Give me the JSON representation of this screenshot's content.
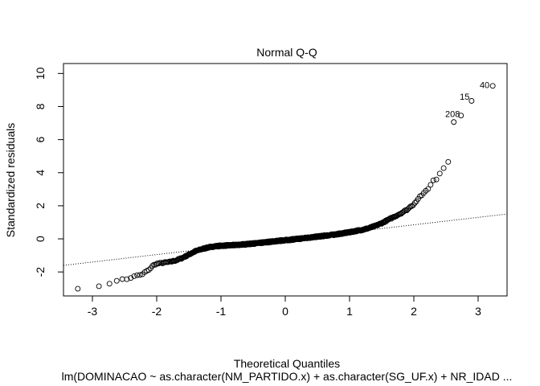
{
  "chart_data": {
    "type": "scatter",
    "title": "Normal Q-Q",
    "xlabel": "Theoretical Quantiles",
    "ylabel": "Standardized residuals",
    "subtitle": "lm(DOMINACAO ~ as.character(NM_PARTIDO.x) + as.character(SG_UF.x) + NR_IDAD ...",
    "xlim": [
      -3.45,
      3.45
    ],
    "ylim": [
      -3.45,
      10.6
    ],
    "x_ticks": [
      -3,
      -2,
      -1,
      0,
      1,
      2,
      3
    ],
    "x_tick_labels": [
      "-3",
      "-2",
      "-1",
      "0",
      "1",
      "2",
      "3"
    ],
    "y_ticks": [
      -2,
      0,
      2,
      4,
      6,
      8,
      10
    ],
    "y_tick_labels": [
      "-2",
      "0",
      "2",
      "4",
      "6",
      "8",
      "10"
    ],
    "reference_line": {
      "slope": 0.45,
      "intercept": -0.05,
      "style": "dotted"
    },
    "n_points": 800,
    "labeled_points": [
      {
        "label": "40",
        "x": 3.24,
        "y": 9.3
      },
      {
        "label": "15",
        "x": 2.93,
        "y": 8.6
      },
      {
        "label": "208",
        "x": 2.78,
        "y": 7.55
      }
    ],
    "series": [
      {
        "name": "residuals",
        "points": [
          [
            -3.24,
            -2.98
          ],
          [
            -2.93,
            -2.92
          ],
          [
            -2.78,
            -2.82
          ],
          [
            -2.68,
            -2.55
          ],
          [
            -2.6,
            -2.5
          ],
          [
            -2.53,
            -2.45
          ],
          [
            -2.47,
            -2.45
          ],
          [
            -2.42,
            -2.38
          ],
          [
            -2.37,
            -2.3
          ],
          [
            -2.33,
            -2.25
          ],
          [
            -2.29,
            -2.2
          ],
          [
            -2.25,
            -2.18
          ],
          [
            -2.22,
            -2.15
          ],
          [
            -2.18,
            -2.0
          ],
          [
            -2.15,
            -1.95
          ],
          [
            -2.12,
            -1.85
          ],
          [
            -2.09,
            -1.75
          ],
          [
            -2.06,
            -1.62
          ],
          [
            -2.03,
            -1.55
          ],
          [
            -2.0,
            -1.5
          ],
          [
            -1.95,
            -1.48
          ],
          [
            -1.9,
            -1.45
          ],
          [
            -1.8,
            -1.4
          ],
          [
            -1.7,
            -1.3
          ],
          [
            -1.6,
            -1.15
          ],
          [
            -1.5,
            -0.95
          ],
          [
            -1.4,
            -0.75
          ],
          [
            -1.3,
            -0.62
          ],
          [
            -1.2,
            -0.52
          ],
          [
            -1.1,
            -0.45
          ],
          [
            -1.0,
            -0.42
          ],
          [
            -0.8,
            -0.38
          ],
          [
            -0.6,
            -0.32
          ],
          [
            -0.4,
            -0.25
          ],
          [
            -0.2,
            -0.16
          ],
          [
            0.0,
            -0.08
          ],
          [
            0.2,
            0.0
          ],
          [
            0.4,
            0.09
          ],
          [
            0.6,
            0.18
          ],
          [
            0.8,
            0.28
          ],
          [
            1.0,
            0.4
          ],
          [
            1.1,
            0.48
          ],
          [
            1.2,
            0.55
          ],
          [
            1.3,
            0.65
          ],
          [
            1.4,
            0.78
          ],
          [
            1.5,
            0.95
          ],
          [
            1.6,
            1.15
          ],
          [
            1.7,
            1.35
          ],
          [
            1.8,
            1.55
          ],
          [
            1.9,
            1.78
          ],
          [
            1.95,
            1.95
          ],
          [
            2.0,
            2.1
          ],
          [
            2.03,
            2.25
          ],
          [
            2.06,
            2.4
          ],
          [
            2.09,
            2.55
          ],
          [
            2.12,
            2.65
          ],
          [
            2.15,
            2.72
          ],
          [
            2.18,
            2.85
          ],
          [
            2.22,
            3.0
          ],
          [
            2.25,
            3.2
          ],
          [
            2.29,
            3.55
          ],
          [
            2.33,
            3.55
          ],
          [
            2.37,
            3.6
          ],
          [
            2.42,
            4.15
          ],
          [
            2.47,
            4.3
          ],
          [
            2.53,
            4.5
          ],
          [
            2.6,
            6.95
          ],
          [
            2.68,
            7.4
          ],
          [
            2.78,
            7.55
          ],
          [
            2.93,
            8.6
          ],
          [
            3.24,
            9.3
          ]
        ]
      }
    ]
  }
}
